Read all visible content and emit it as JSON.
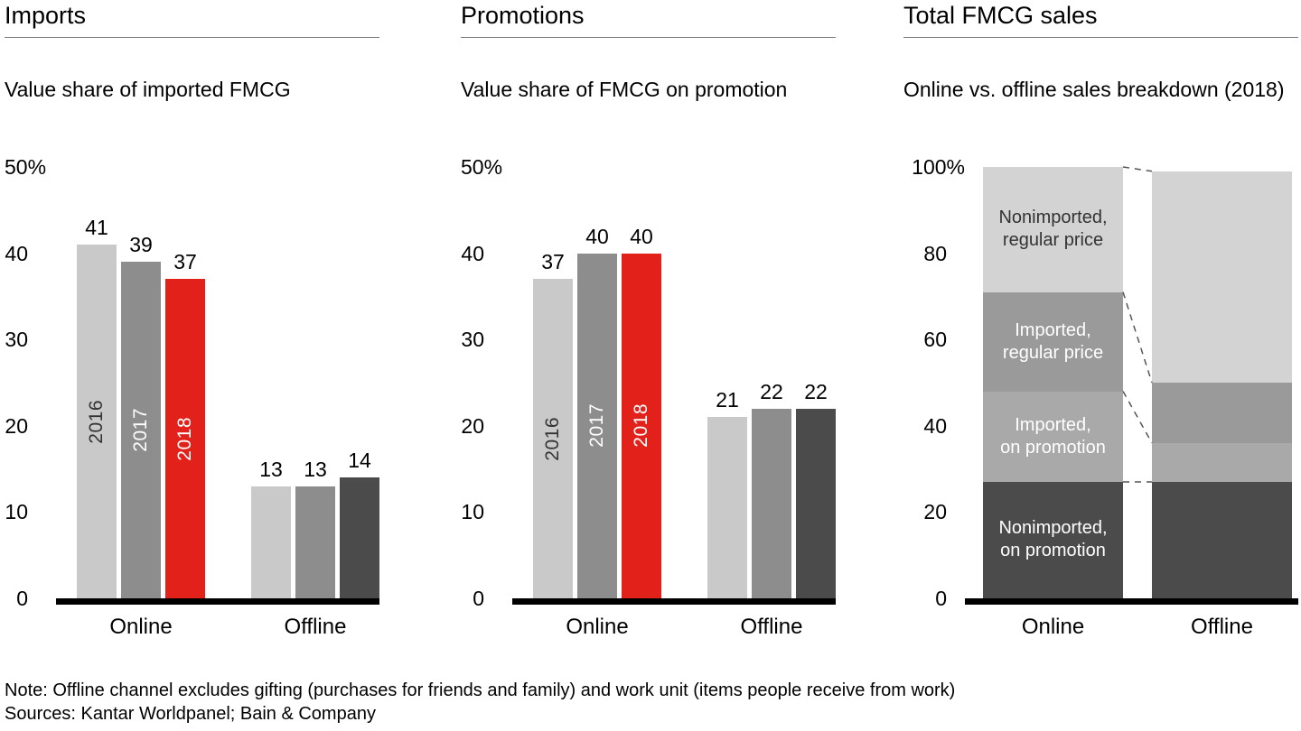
{
  "note": "Note: Offline channel excludes gifting (purchases for friends and family) and work unit (items people receive from work)",
  "sources": "Sources: Kantar Worldpanel; Bain & Company",
  "chart_data": [
    {
      "type": "grouped_bar",
      "title": "Imports",
      "subtitle": "Value share of imported FMCG",
      "unit": "%",
      "ylim": [
        0,
        50
      ],
      "y_max_label": "50%",
      "yticks": [
        "40",
        "30",
        "20",
        "10",
        "0"
      ],
      "series": [
        "2016",
        "2017",
        "2018"
      ],
      "legend_position": "in-bar",
      "grid": false,
      "groups": [
        {
          "label": "Online",
          "values": [
            41,
            39,
            37
          ],
          "colors": [
            "#c9c9c9",
            "#8d8d8d",
            "#e3211b"
          ],
          "show_series_labels": true,
          "series_label_colors": [
            "#333333",
            "#ffffff",
            "#ffffff"
          ]
        },
        {
          "label": "Offline",
          "values": [
            13,
            13,
            14
          ],
          "colors": [
            "#c9c9c9",
            "#8d8d8d",
            "#4b4b4b"
          ],
          "show_series_labels": false,
          "series_label_colors": []
        }
      ]
    },
    {
      "type": "grouped_bar",
      "title": "Promotions",
      "subtitle": "Value share of FMCG on promotion",
      "unit": "%",
      "ylim": [
        0,
        50
      ],
      "y_max_label": "50%",
      "yticks": [
        "40",
        "30",
        "20",
        "10",
        "0"
      ],
      "series": [
        "2016",
        "2017",
        "2018"
      ],
      "legend_position": "in-bar",
      "grid": false,
      "groups": [
        {
          "label": "Online",
          "values": [
            37,
            40,
            40
          ],
          "colors": [
            "#c9c9c9",
            "#8d8d8d",
            "#e3211b"
          ],
          "show_series_labels": true,
          "series_label_colors": [
            "#333333",
            "#ffffff",
            "#ffffff"
          ]
        },
        {
          "label": "Offline",
          "values": [
            21,
            22,
            22
          ],
          "colors": [
            "#c9c9c9",
            "#8d8d8d",
            "#4b4b4b"
          ],
          "show_series_labels": false,
          "series_label_colors": []
        }
      ]
    },
    {
      "type": "stacked_bar",
      "title": "Total FMCG sales",
      "subtitle": "Online vs. offline sales breakdown (2018)",
      "unit": "%",
      "ylim": [
        0,
        100
      ],
      "y_max_label": "100%",
      "yticks": [
        "80",
        "60",
        "40",
        "20",
        "0"
      ],
      "categories": [
        "Online",
        "Offline"
      ],
      "labels_on_category": "Online",
      "connectors": true,
      "grid": false,
      "segments": [
        {
          "name": "Nonimported, on promotion",
          "label_lines": [
            "Nonimported,",
            "on promotion"
          ],
          "values": [
            27,
            27
          ],
          "color": "#4b4b4b",
          "text_color": "#ffffff"
        },
        {
          "name": "Imported, on promotion",
          "label_lines": [
            "Imported,",
            "on promotion"
          ],
          "values": [
            21,
            9
          ],
          "color": "#a9a9a9",
          "text_color": "#ffffff"
        },
        {
          "name": "Imported, regular price",
          "label_lines": [
            "Imported,",
            "regular price"
          ],
          "values": [
            23,
            14
          ],
          "color": "#9a9a9a",
          "text_color": "#ffffff"
        },
        {
          "name": "Nonimported, regular price",
          "label_lines": [
            "Nonimported,",
            "regular price"
          ],
          "values": [
            29,
            49
          ],
          "color": "#d3d3d3",
          "text_color": "#333333"
        }
      ]
    }
  ]
}
